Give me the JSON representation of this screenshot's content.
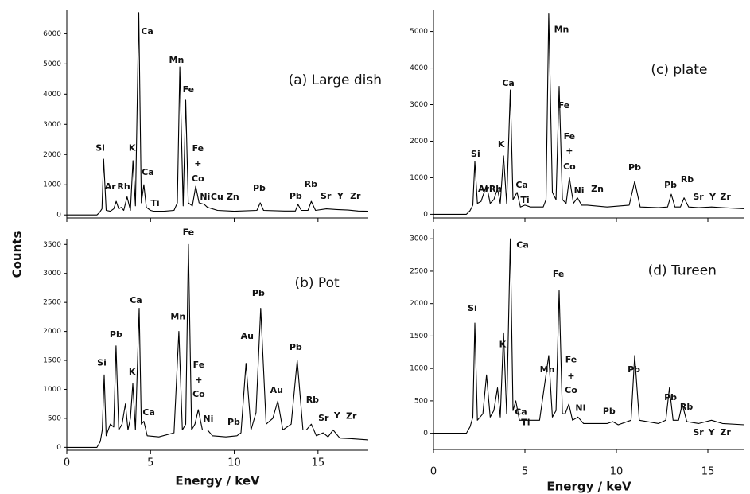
{
  "chart_data": [
    {
      "type": "line",
      "title": "(a) Large dish",
      "ylabel": "Counts",
      "xlim": [
        0,
        18
      ],
      "xticks": [
        0,
        5,
        10,
        15
      ],
      "ylim": [
        -100,
        6800
      ],
      "yticks": [
        0,
        1000,
        2000,
        3000,
        4000,
        5000,
        6000
      ],
      "color": "#000000",
      "x": [
        0,
        1.8,
        1.95,
        2.1,
        2.2,
        2.35,
        2.6,
        2.8,
        2.95,
        3.1,
        3.25,
        3.4,
        3.6,
        3.8,
        3.95,
        4.1,
        4.3,
        4.45,
        4.6,
        4.75,
        5.0,
        5.2,
        5.8,
        6.4,
        6.6,
        6.75,
        6.95,
        7.1,
        7.25,
        7.5,
        7.7,
        7.9,
        8.2,
        8.4,
        9,
        10,
        11.35,
        11.55,
        11.75,
        13.0,
        13.65,
        13.8,
        14.0,
        14.4,
        14.6,
        14.85,
        15.5,
        16.1,
        16.8,
        17.4,
        18
      ],
      "values": [
        0,
        0,
        80,
        200,
        1850,
        150,
        120,
        200,
        450,
        200,
        250,
        150,
        600,
        150,
        1800,
        300,
        6700,
        400,
        1000,
        250,
        150,
        120,
        120,
        150,
        400,
        4900,
        300,
        3800,
        400,
        300,
        950,
        400,
        350,
        250,
        150,
        120,
        150,
        400,
        150,
        130,
        130,
        350,
        150,
        150,
        450,
        150,
        200,
        180,
        160,
        130,
        120
      ],
      "annotations": [
        {
          "text": "Si",
          "x": 2.0,
          "y": 2200
        },
        {
          "text": "Ar",
          "x": 2.6,
          "y": 930
        },
        {
          "text": "Rh",
          "x": 3.4,
          "y": 930
        },
        {
          "text": "K",
          "x": 3.9,
          "y": 2200
        },
        {
          "text": "Ca",
          "x": 4.8,
          "y": 6060
        },
        {
          "text": "Ca",
          "x": 4.84,
          "y": 1400
        },
        {
          "text": "Ti",
          "x": 5.27,
          "y": 370
        },
        {
          "text": "Mn",
          "x": 6.55,
          "y": 5120
        },
        {
          "text": "Fe",
          "x": 7.26,
          "y": 4140
        },
        {
          "text": "Fe",
          "x": 7.83,
          "y": 2190
        },
        {
          "text": "+",
          "x": 7.83,
          "y": 1690
        },
        {
          "text": "Co",
          "x": 7.83,
          "y": 1190
        },
        {
          "text": "Ni",
          "x": 8.26,
          "y": 585
        },
        {
          "text": "Cu",
          "x": 8.97,
          "y": 585
        },
        {
          "text": "Zn",
          "x": 9.92,
          "y": 585
        },
        {
          "text": "Pb",
          "x": 11.49,
          "y": 875
        },
        {
          "text": "Pb",
          "x": 13.67,
          "y": 610
        },
        {
          "text": "Rb",
          "x": 14.57,
          "y": 1006
        },
        {
          "text": "Sr",
          "x": 15.47,
          "y": 610
        },
        {
          "text": "Y",
          "x": 16.33,
          "y": 610
        },
        {
          "text": "Zr",
          "x": 17.23,
          "y": 610
        }
      ]
    },
    {
      "type": "line",
      "title": "(b) Pot",
      "xlabel": "Energy / keV",
      "xlim": [
        0,
        18
      ],
      "xticks": [
        0,
        5,
        10,
        15
      ],
      "ylim": [
        -50,
        3600
      ],
      "yticks": [
        0,
        500,
        1000,
        1500,
        2000,
        2500,
        3000,
        3500
      ],
      "color": "#000000",
      "x": [
        0,
        1.8,
        2.0,
        2.12,
        2.23,
        2.35,
        2.6,
        2.8,
        2.94,
        3.1,
        3.3,
        3.5,
        3.65,
        3.8,
        3.94,
        4.1,
        4.32,
        4.45,
        4.6,
        4.8,
        5.5,
        6.4,
        6.69,
        6.9,
        7.1,
        7.26,
        7.45,
        7.65,
        7.85,
        8.1,
        8.4,
        8.7,
        9.5,
        10.16,
        10.4,
        10.7,
        11.0,
        11.3,
        11.58,
        11.9,
        12.3,
        12.6,
        12.9,
        13.4,
        13.76,
        14.1,
        14.3,
        14.6,
        14.9,
        15.3,
        15.6,
        15.9,
        16.3,
        17,
        18
      ],
      "values": [
        0,
        0,
        100,
        300,
        1250,
        200,
        400,
        350,
        1750,
        300,
        400,
        750,
        300,
        500,
        1100,
        300,
        2400,
        400,
        450,
        200,
        180,
        250,
        2000,
        300,
        400,
        3500,
        300,
        400,
        650,
        300,
        300,
        200,
        180,
        200,
        250,
        1450,
        300,
        600,
        2400,
        400,
        500,
        800,
        300,
        400,
        1500,
        300,
        300,
        400,
        200,
        250,
        180,
        300,
        160,
        150,
        130
      ],
      "annotations": [
        {
          "text": "Si",
          "x": 2.09,
          "y": 1450
        },
        {
          "text": "Pb",
          "x": 2.94,
          "y": 1940
        },
        {
          "text": "K",
          "x": 3.9,
          "y": 1295
        },
        {
          "text": "Ca",
          "x": 4.13,
          "y": 2530
        },
        {
          "text": "Ca",
          "x": 4.9,
          "y": 595
        },
        {
          "text": "Mn",
          "x": 6.64,
          "y": 2250
        },
        {
          "text": "Fe",
          "x": 7.26,
          "y": 3700
        },
        {
          "text": "Fe",
          "x": 7.88,
          "y": 1420
        },
        {
          "text": "+",
          "x": 7.88,
          "y": 1160
        },
        {
          "text": "Co",
          "x": 7.88,
          "y": 910
        },
        {
          "text": "Ni",
          "x": 8.45,
          "y": 485
        },
        {
          "text": "Pb",
          "x": 9.97,
          "y": 430
        },
        {
          "text": "Au",
          "x": 10.77,
          "y": 1910
        },
        {
          "text": "Pb",
          "x": 11.44,
          "y": 2650
        },
        {
          "text": "Au",
          "x": 12.53,
          "y": 980
        },
        {
          "text": "Pb",
          "x": 13.67,
          "y": 1720
        },
        {
          "text": "Rb",
          "x": 14.67,
          "y": 815
        },
        {
          "text": "Sr",
          "x": 15.33,
          "y": 500
        },
        {
          "text": "Y",
          "x": 16.14,
          "y": 540
        },
        {
          "text": "Zr",
          "x": 16.99,
          "y": 530
        }
      ]
    },
    {
      "type": "line",
      "title": "(c) plate",
      "xlim": [
        0,
        17
      ],
      "xticks": [
        0,
        5,
        10,
        15
      ],
      "ylim": [
        -100,
        5600
      ],
      "yticks": [
        0,
        1000,
        2000,
        3000,
        4000,
        5000
      ],
      "color": "#000000",
      "x": [
        0,
        1.8,
        2.0,
        2.15,
        2.26,
        2.4,
        2.6,
        2.9,
        3.1,
        3.3,
        3.5,
        3.65,
        3.83,
        4.0,
        4.2,
        4.35,
        4.57,
        4.75,
        5.0,
        5.3,
        6.0,
        6.15,
        6.3,
        6.5,
        6.7,
        6.87,
        7.05,
        7.25,
        7.43,
        7.65,
        7.87,
        8.1,
        8.4,
        9.5,
        10.7,
        11.0,
        11.3,
        12.3,
        12.8,
        13.0,
        13.2,
        13.5,
        13.7,
        13.95,
        14.5,
        15.2,
        15.8,
        17
      ],
      "values": [
        0,
        0,
        100,
        250,
        1450,
        300,
        350,
        800,
        300,
        400,
        700,
        300,
        1600,
        300,
        3400,
        400,
        600,
        200,
        250,
        200,
        200,
        400,
        5500,
        600,
        400,
        3500,
        400,
        300,
        1000,
        300,
        450,
        250,
        250,
        200,
        250,
        900,
        200,
        180,
        200,
        550,
        200,
        200,
        450,
        200,
        180,
        200,
        180,
        150
      ],
      "annotations": [
        {
          "text": "Si",
          "x": 2.3,
          "y": 1640
        },
        {
          "text": "Ar",
          "x": 2.74,
          "y": 680
        },
        {
          "text": "Rh",
          "x": 3.39,
          "y": 680
        },
        {
          "text": "K",
          "x": 3.7,
          "y": 1900
        },
        {
          "text": "Ca",
          "x": 4.09,
          "y": 3580
        },
        {
          "text": "Ca",
          "x": 4.83,
          "y": 790
        },
        {
          "text": "Ti",
          "x": 5.0,
          "y": 380
        },
        {
          "text": "Mn",
          "x": 7.0,
          "y": 5040
        },
        {
          "text": "Fe",
          "x": 7.13,
          "y": 2970
        },
        {
          "text": "Fe",
          "x": 7.43,
          "y": 2120
        },
        {
          "text": "+",
          "x": 7.43,
          "y": 1730
        },
        {
          "text": "Co",
          "x": 7.43,
          "y": 1290
        },
        {
          "text": "Ni",
          "x": 7.96,
          "y": 640
        },
        {
          "text": "Zn",
          "x": 8.96,
          "y": 680
        },
        {
          "text": "Pb",
          "x": 11.0,
          "y": 1270
        },
        {
          "text": "Pb",
          "x": 12.96,
          "y": 790
        },
        {
          "text": "Rb",
          "x": 13.87,
          "y": 940
        },
        {
          "text": "Sr",
          "x": 14.48,
          "y": 470
        },
        {
          "text": "Y",
          "x": 15.26,
          "y": 470
        },
        {
          "text": "Zr",
          "x": 15.96,
          "y": 470
        }
      ]
    },
    {
      "type": "line",
      "title": "(d) Tureen",
      "xlabel": "Energy / keV",
      "xlim": [
        0,
        17
      ],
      "xticks": [
        0,
        5,
        10,
        15
      ],
      "ylim": [
        -250,
        3150
      ],
      "yticks": [
        0,
        500,
        1000,
        1500,
        2000,
        2500,
        3000
      ],
      "color": "#000000",
      "x": [
        0,
        1.8,
        2.0,
        2.15,
        2.26,
        2.4,
        2.7,
        2.9,
        3.1,
        3.3,
        3.5,
        3.65,
        3.83,
        4.0,
        4.2,
        4.35,
        4.5,
        4.7,
        5.0,
        5.8,
        6.3,
        6.5,
        6.7,
        6.87,
        7.05,
        7.2,
        7.4,
        7.6,
        7.9,
        8.2,
        9.5,
        9.8,
        10.1,
        10.8,
        11.0,
        11.25,
        12.3,
        12.7,
        12.9,
        13.1,
        13.4,
        13.6,
        13.85,
        14.5,
        15.2,
        15.8,
        17
      ],
      "values": [
        0,
        0,
        100,
        250,
        1700,
        200,
        300,
        900,
        250,
        350,
        700,
        250,
        1550,
        300,
        3000,
        350,
        500,
        200,
        200,
        200,
        1200,
        250,
        350,
        2200,
        300,
        300,
        450,
        200,
        250,
        150,
        150,
        180,
        130,
        200,
        1200,
        200,
        150,
        200,
        700,
        200,
        200,
        450,
        180,
        150,
        200,
        150,
        130
      ],
      "annotations": [
        {
          "text": "Si",
          "x": 2.13,
          "y": 1920
        },
        {
          "text": "K",
          "x": 3.78,
          "y": 1365
        },
        {
          "text": "Ca",
          "x": 4.87,
          "y": 2900
        },
        {
          "text": "Ca",
          "x": 4.78,
          "y": 320
        },
        {
          "text": "Ti",
          "x": 5.04,
          "y": 160
        },
        {
          "text": "Mn",
          "x": 6.22,
          "y": 980
        },
        {
          "text": "Fe",
          "x": 6.83,
          "y": 2450
        },
        {
          "text": "Fe",
          "x": 7.52,
          "y": 1130
        },
        {
          "text": "+",
          "x": 7.52,
          "y": 880
        },
        {
          "text": "Co",
          "x": 7.52,
          "y": 660
        },
        {
          "text": "Ni",
          "x": 8.04,
          "y": 380
        },
        {
          "text": "Pb",
          "x": 9.6,
          "y": 330
        },
        {
          "text": "Pb",
          "x": 10.96,
          "y": 980
        },
        {
          "text": "Pb",
          "x": 12.96,
          "y": 550
        },
        {
          "text": "Rb",
          "x": 13.83,
          "y": 400
        },
        {
          "text": "Sr",
          "x": 14.48,
          "y": 10
        },
        {
          "text": "Y",
          "x": 15.2,
          "y": 10
        },
        {
          "text": "Zr",
          "x": 15.96,
          "y": 10
        }
      ]
    }
  ]
}
